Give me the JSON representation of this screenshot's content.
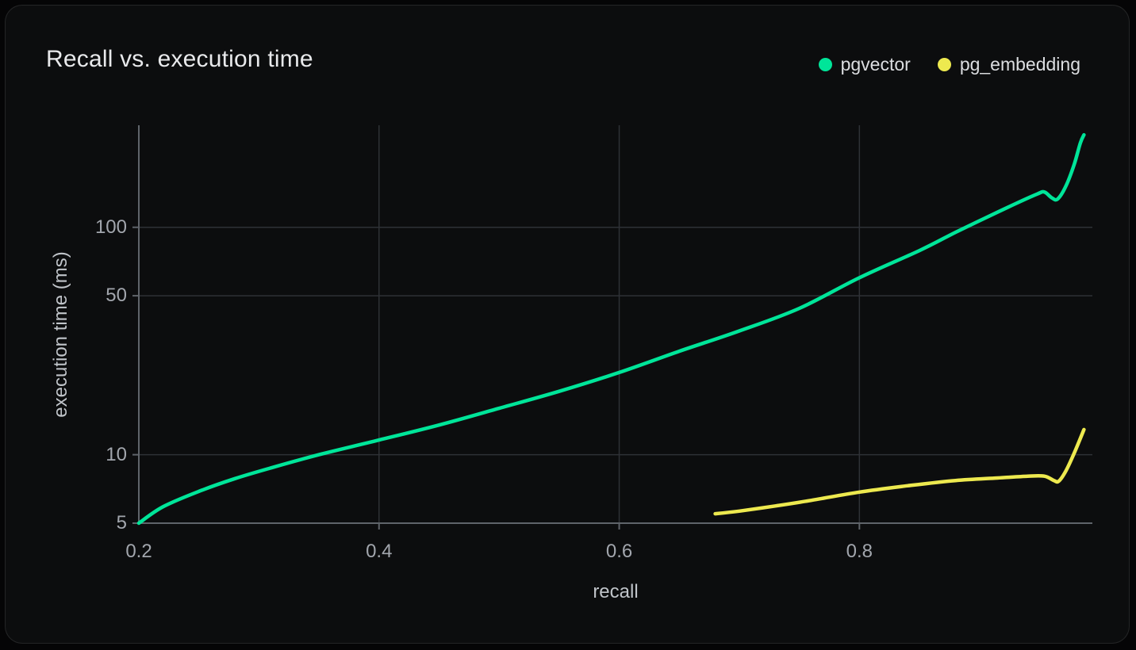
{
  "chart_data": {
    "type": "line",
    "title": "Recall vs. execution time",
    "xlabel": "recall",
    "ylabel": "execution time (ms)",
    "x_scale": "linear",
    "y_scale": "log",
    "xlim": [
      0.2,
      0.994
    ],
    "ylim": [
      5,
      281
    ],
    "x_ticks": [
      0.2,
      0.4,
      0.6,
      0.8
    ],
    "y_ticks": [
      5,
      10,
      50,
      100
    ],
    "grid": true,
    "legend_position": "top-right",
    "series": [
      {
        "name": "pgvector",
        "color": "#00e599",
        "points": [
          [
            0.2,
            5.0
          ],
          [
            0.22,
            5.9
          ],
          [
            0.25,
            6.9
          ],
          [
            0.28,
            7.85
          ],
          [
            0.31,
            8.75
          ],
          [
            0.35,
            10.0
          ],
          [
            0.4,
            11.6
          ],
          [
            0.45,
            13.5
          ],
          [
            0.5,
            16.0
          ],
          [
            0.55,
            19.0
          ],
          [
            0.6,
            23.0
          ],
          [
            0.65,
            28.5
          ],
          [
            0.7,
            35.0
          ],
          [
            0.75,
            44.0
          ],
          [
            0.8,
            60.0
          ],
          [
            0.85,
            79.0
          ],
          [
            0.88,
            95.0
          ],
          [
            0.905,
            110.0
          ],
          [
            0.93,
            127.0
          ],
          [
            0.948,
            140.0
          ],
          [
            0.954,
            143.0
          ],
          [
            0.96,
            135.0
          ],
          [
            0.965,
            133.0
          ],
          [
            0.972,
            152.0
          ],
          [
            0.979,
            190.0
          ],
          [
            0.984,
            235.0
          ],
          [
            0.987,
            255.0
          ]
        ]
      },
      {
        "name": "pg_embedding",
        "color": "#ede94f",
        "points": [
          [
            0.68,
            5.5
          ],
          [
            0.7,
            5.65
          ],
          [
            0.73,
            5.95
          ],
          [
            0.76,
            6.3
          ],
          [
            0.8,
            6.85
          ],
          [
            0.84,
            7.3
          ],
          [
            0.88,
            7.7
          ],
          [
            0.915,
            7.9
          ],
          [
            0.94,
            8.05
          ],
          [
            0.954,
            8.05
          ],
          [
            0.962,
            7.7
          ],
          [
            0.966,
            7.65
          ],
          [
            0.972,
            8.5
          ],
          [
            0.979,
            10.2
          ],
          [
            0.987,
            12.9
          ]
        ]
      }
    ],
    "colors": {
      "card_background": "#0c0d0e",
      "axis_line": "#5f646a",
      "grid_line": "#2e3136",
      "tick_label": "#a2a6ad",
      "axis_title": "#c0c4c9",
      "chart_title": "#e8e9eb"
    }
  }
}
